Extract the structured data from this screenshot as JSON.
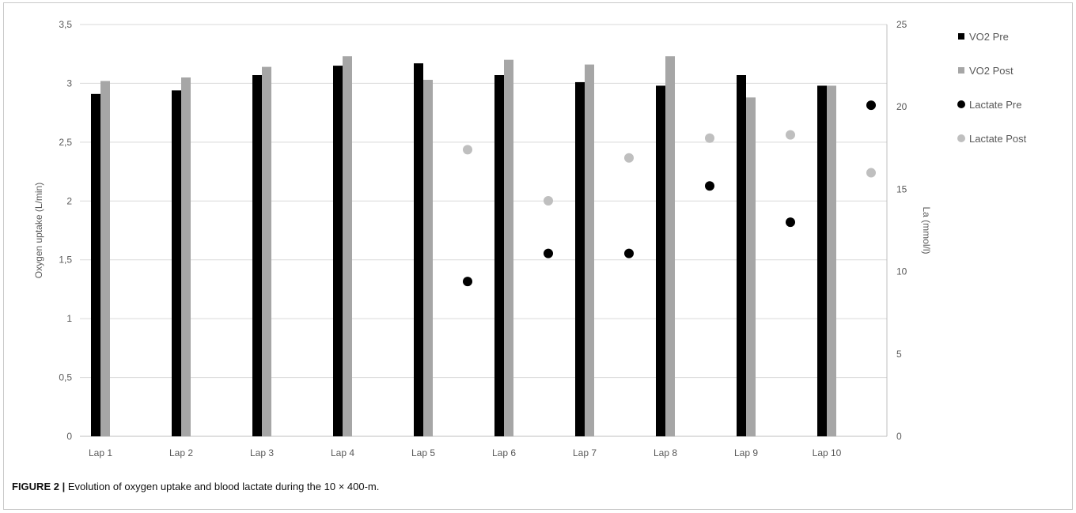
{
  "caption": {
    "label": "FIGURE 2 |",
    "text": "Evolution of oxygen uptake and blood lactate during the 10 × 400-m."
  },
  "chart_data": {
    "type": "bar",
    "categories": [
      "Lap 1",
      "Lap 2",
      "Lap 3",
      "Lap 4",
      "Lap 5",
      "Lap 6",
      "Lap 7",
      "Lap 8",
      "Lap 9",
      "Lap 10"
    ],
    "ylabel": "Oxygen uptake (L/min)",
    "y2label": "La (mmol/l)",
    "ylim": [
      0,
      3.5
    ],
    "y2lim": [
      0,
      25
    ],
    "yticks": [
      "0",
      "0,5",
      "1",
      "1,5",
      "2",
      "2,5",
      "3",
      "3,5"
    ],
    "y2ticks": [
      "0",
      "5",
      "10",
      "15",
      "20",
      "25"
    ],
    "grid": true,
    "legend_position": "right",
    "series": [
      {
        "name": "VO2 Pre",
        "kind": "bar",
        "axis": "left",
        "color": "#000000",
        "values": [
          2.91,
          2.94,
          3.07,
          3.15,
          3.17,
          3.07,
          3.01,
          2.98,
          3.07,
          2.98
        ]
      },
      {
        "name": "VO2 Post",
        "kind": "bar",
        "axis": "left",
        "color": "#a6a6a6",
        "values": [
          3.02,
          3.05,
          3.14,
          3.23,
          3.03,
          3.2,
          3.16,
          3.23,
          2.88,
          2.98
        ]
      },
      {
        "name": "Lactate Pre",
        "kind": "scatter",
        "axis": "right",
        "color": "#000000",
        "values": [
          null,
          null,
          null,
          null,
          9.4,
          11.1,
          11.1,
          15.2,
          13.0,
          20.1
        ]
      },
      {
        "name": "Lactate Post",
        "kind": "scatter",
        "axis": "right",
        "color": "#bfbfbf",
        "values": [
          null,
          null,
          null,
          null,
          17.4,
          14.3,
          16.9,
          18.1,
          18.3,
          16.0
        ]
      }
    ]
  }
}
